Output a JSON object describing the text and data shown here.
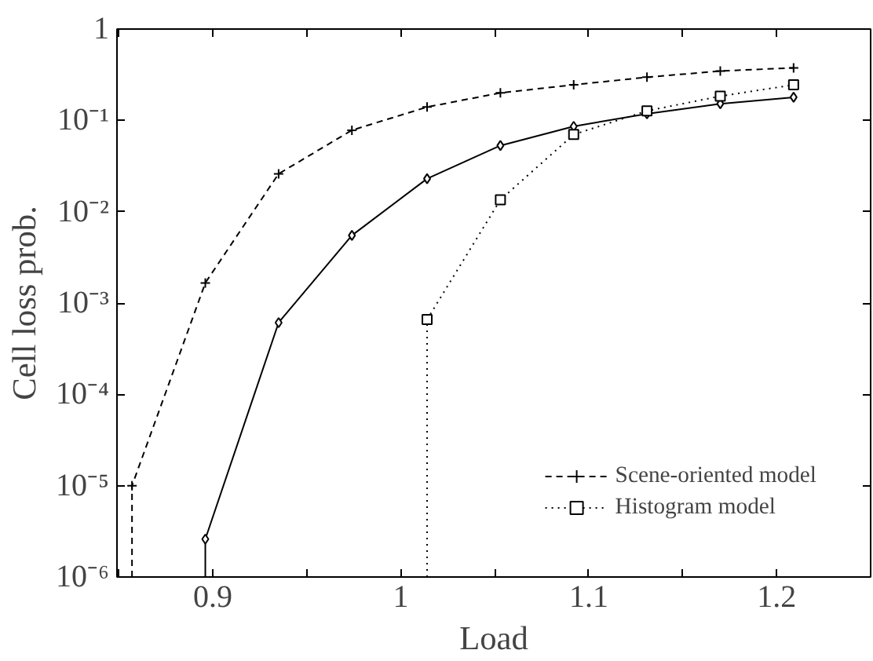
{
  "chart_data": {
    "type": "line",
    "xlabel": "Load",
    "ylabel": "Cell loss prob.",
    "log": "y",
    "grid": false,
    "legend": "bottom right",
    "xlim": [
      0.849,
      1.25
    ],
    "ylim": [
      1e-06,
      1
    ],
    "xticks": [
      {
        "value": 0.85,
        "label": null
      },
      0.9,
      {
        "value": 0.95,
        "label": null
      },
      1,
      {
        "value": 1.05,
        "label": null
      },
      1.1,
      {
        "value": 1.15,
        "label": null
      },
      1.2
    ],
    "yticks": [
      {
        "value": 1e-06,
        "label": "10⁻⁶"
      },
      {
        "value": 1e-05,
        "label": "10⁻⁵"
      },
      {
        "value": 0.0001,
        "label": "10⁻⁴"
      },
      {
        "value": 0.001,
        "label": "10⁻³"
      },
      {
        "value": 0.01,
        "label": "10⁻²"
      },
      {
        "value": 0.1,
        "label": "10⁻¹"
      },
      1
    ],
    "series": [
      {
        "color": "#000000",
        "marker": "diamond",
        "line_style": "solid",
        "x": [
          0.896,
          0.896,
          0.935,
          0.974,
          1.014,
          1.053,
          1.092,
          1.131,
          1.17,
          1.209
        ],
        "values": [
          1e-06,
          2.6e-06,
          0.00061,
          0.0055,
          0.023,
          0.053,
          0.086,
          0.118,
          0.152,
          0.179
        ]
      },
      {
        "name": "Scene-oriented model",
        "color": "#000000",
        "marker": "cross",
        "line_style": "dashed",
        "x": [
          0.857,
          0.857,
          0.896,
          0.935,
          0.974,
          1.014,
          1.053,
          1.092,
          1.131,
          1.17,
          1.209
        ],
        "values": [
          1e-06,
          1e-05,
          0.00166,
          0.026,
          0.078,
          0.14,
          0.2,
          0.245,
          0.297,
          0.347,
          0.376
        ]
      },
      {
        "name": "Histogram model",
        "color": "#000000",
        "marker": "square",
        "line_style": "dotted",
        "x": [
          1.014,
          1.014,
          1.053,
          1.092,
          1.131,
          1.17,
          1.209
        ],
        "values": [
          1e-06,
          0.00066,
          0.0135,
          0.07,
          0.127,
          0.184,
          0.245
        ]
      }
    ]
  }
}
